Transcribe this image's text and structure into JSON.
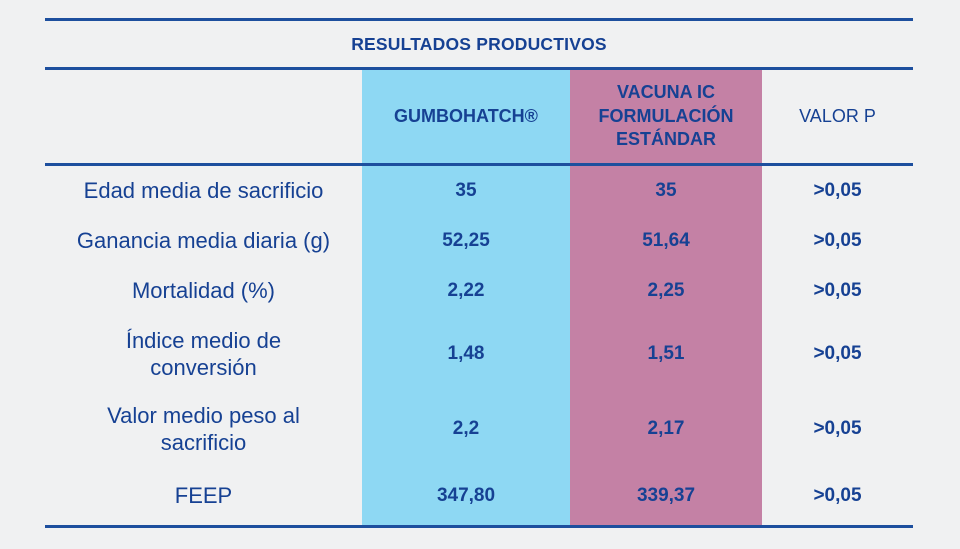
{
  "chart_data": {
    "type": "table",
    "title": "RESULTADOS PRODUCTIVOS",
    "columns": [
      "",
      "GUMBOHATCH®",
      "VACUNA IC FORMULACIÓN ESTÁNDAR",
      "VALOR P"
    ],
    "header": {
      "gumbohatch": "GUMBOHATCH®",
      "vacuna": "VACUNA IC\nFORMULACIÓN\nESTÁNDAR",
      "valor_p": "VALOR P"
    },
    "rows": [
      {
        "label": "Edad media de sacrificio",
        "gumbohatch": "35",
        "vacuna": "35",
        "valor_p": ">0,05"
      },
      {
        "label": "Ganancia media diaria (g)",
        "gumbohatch": "52,25",
        "vacuna": "51,64",
        "valor_p": ">0,05"
      },
      {
        "label": "Mortalidad (%)",
        "gumbohatch": "2,22",
        "vacuna": "2,25",
        "valor_p": ">0,05"
      },
      {
        "label": "Índice medio de\nconversión",
        "gumbohatch": "1,48",
        "vacuna": "1,51",
        "valor_p": ">0,05"
      },
      {
        "label": "Valor medio peso al\nsacrificio",
        "gumbohatch": "2,2",
        "vacuna": "2,17",
        "valor_p": ">0,05"
      },
      {
        "label": "FEEP",
        "gumbohatch": "347,80",
        "vacuna": "339,37",
        "valor_p": ">0,05"
      }
    ],
    "colors": {
      "background": "#F0F1F2",
      "gumbohatch_column": "#8ED8F3",
      "vacuna_column": "#C481A5",
      "text": "#164193",
      "rules": "#1D4F9E"
    },
    "layout_hints": {
      "gridlines": "horizontal rules only (above title, below title, below header, bottom)",
      "highlighted_columns": [
        "GUMBOHATCH®",
        "VACUNA IC FORMULACIÓN ESTÁNDAR"
      ]
    }
  }
}
